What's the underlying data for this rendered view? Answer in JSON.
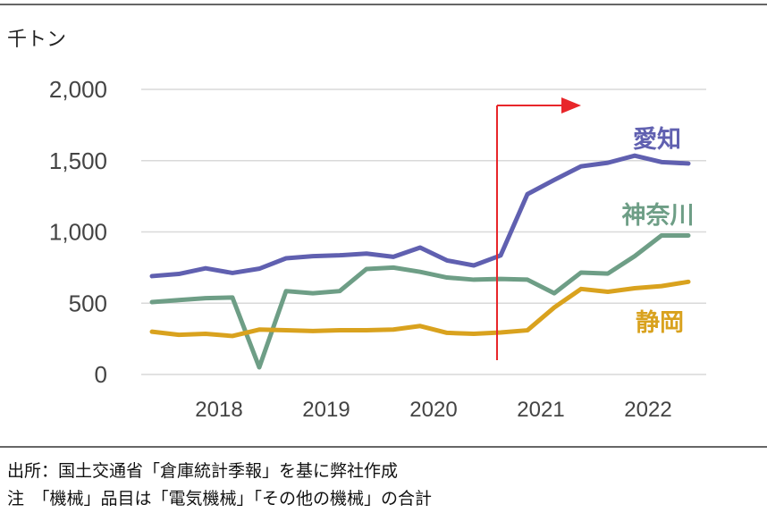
{
  "unit_label": "千トン",
  "footnotes": {
    "source": "出所：国土交通省「倉庫統計季報」を基に弊社作成",
    "note": "注　「機械」品目は「電気機械」「その他の機械」の合計"
  },
  "chart_data": {
    "type": "line",
    "title": "",
    "xlabel": "",
    "ylabel": "千トン",
    "ylim": [
      0,
      2000
    ],
    "y_ticks": [
      0,
      500,
      1000,
      1500,
      2000
    ],
    "y_tick_labels": [
      "0",
      "500",
      "1,000",
      "1,500",
      "2,000"
    ],
    "x_tick_labels": [
      "2018",
      "2019",
      "2020",
      "2021",
      "2022"
    ],
    "grid": true,
    "legend": "inline-labels",
    "series": [
      {
        "name": "愛知",
        "color": "#6060B0",
        "values": [
          690,
          705,
          745,
          712,
          742,
          815,
          830,
          836,
          848,
          825,
          890,
          800,
          765,
          835,
          1265,
          1365,
          1460,
          1485,
          1535,
          1490,
          1480
        ]
      },
      {
        "name": "神奈川",
        "color": "#6E9E86",
        "values": [
          508,
          522,
          535,
          540,
          50,
          585,
          570,
          585,
          740,
          750,
          720,
          680,
          665,
          670,
          665,
          570,
          715,
          708,
          830,
          975,
          975
        ]
      },
      {
        "name": "静岡",
        "color": "#D9A21E",
        "values": [
          300,
          278,
          285,
          270,
          315,
          310,
          305,
          310,
          310,
          315,
          340,
          292,
          285,
          295,
          310,
          470,
          600,
          580,
          605,
          620,
          650
        ]
      }
    ],
    "annotation": {
      "type": "arrow",
      "color": "#E8262A"
    }
  }
}
